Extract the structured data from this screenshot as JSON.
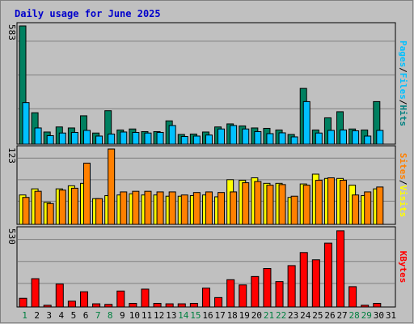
{
  "chart_data": {
    "type": "bar",
    "title": "Daily usage for June 2025",
    "x": [
      "1",
      "2",
      "3",
      "4",
      "5",
      "6",
      "7",
      "8",
      "9",
      "10",
      "11",
      "12",
      "13",
      "14",
      "15",
      "16",
      "17",
      "18",
      "19",
      "20",
      "21",
      "22",
      "23",
      "24",
      "25",
      "26",
      "27",
      "28",
      "29",
      "30",
      "31"
    ],
    "weekend_days": [
      "1",
      "7",
      "8",
      "14",
      "15",
      "21",
      "22",
      "28",
      "29"
    ],
    "grid": true,
    "panels": [
      {
        "id": "hits-files",
        "ylim": [
          0,
          583
        ],
        "ymax_label": "583",
        "right_label": [
          "Pages",
          "/",
          "Files",
          "/",
          "Hits"
        ],
        "right_label_colors": [
          "#00c0ff",
          "#000000",
          "#00c0ff",
          "#000000",
          "#008080"
        ],
        "series": [
          {
            "name": "Hits",
            "color": "#008060",
            "values": [
              583,
              155,
              60,
              85,
              80,
              140,
              55,
              165,
              70,
              75,
              62,
              62,
              115,
              48,
              50,
              60,
              85,
              100,
              90,
              80,
              78,
              70,
              48,
              275,
              70,
              130,
              160,
              75,
              70,
              210,
              0
            ]
          },
          {
            "name": "Files",
            "color": "#00c0ff",
            "values": [
              205,
              80,
              42,
              55,
              58,
              68,
              40,
              50,
              60,
              58,
              55,
              58,
              92,
              38,
              40,
              45,
              75,
              92,
              75,
              62,
              52,
              56,
              36,
              210,
              55,
              68,
              70,
              66,
              40,
              68,
              0
            ]
          },
          {
            "name": "Pages",
            "color": "#00c0ff",
            "values": [
              0,
              0,
              0,
              0,
              0,
              0,
              0,
              0,
              0,
              0,
              0,
              0,
              0,
              0,
              0,
              0,
              0,
              0,
              0,
              0,
              0,
              0,
              0,
              0,
              0,
              0,
              0,
              0,
              0,
              0,
              0
            ]
          }
        ]
      },
      {
        "id": "visits-sites",
        "ylim": [
          0,
          123
        ],
        "ymax_label": "123",
        "right_label": [
          "Sites",
          "/",
          "Visits"
        ],
        "right_label_colors": [
          "#ff8000",
          "#000000",
          "#ffff00"
        ],
        "series": [
          {
            "name": "Visits",
            "color": "#ffff00",
            "values": [
              48,
              58,
              36,
              58,
              63,
              67,
              42,
              47,
              48,
              50,
              48,
              48,
              46,
              46,
              47,
              48,
              45,
              73,
              72,
              76,
              67,
              67,
              44,
              66,
              82,
              75,
              75,
              64,
              47,
              58,
              0
            ]
          },
          {
            "name": "Sites",
            "color": "#ff8000",
            "values": [
              44,
              54,
              34,
              56,
              59,
              100,
              42,
              123,
              53,
              54,
              54,
              53,
              53,
              48,
              52,
              53,
              52,
              53,
              68,
              70,
              64,
              65,
              46,
              64,
              72,
              76,
              72,
              48,
              53,
              61,
              0
            ]
          }
        ]
      },
      {
        "id": "kbytes",
        "ylim": [
          0,
          530
        ],
        "ymax_label": "530",
        "right_label": [
          "KBytes"
        ],
        "right_label_colors": [
          "#ff0000"
        ],
        "series": [
          {
            "name": "KBytes",
            "color": "#ff0000",
            "values": [
              60,
              195,
              12,
              158,
              40,
              105,
              22,
              18,
              110,
              25,
              123,
              25,
              22,
              22,
              25,
              130,
              65,
              188,
              152,
              210,
              265,
              175,
              285,
              375,
              325,
              440,
              525,
              140,
              12,
              25,
              0
            ]
          }
        ]
      }
    ]
  }
}
